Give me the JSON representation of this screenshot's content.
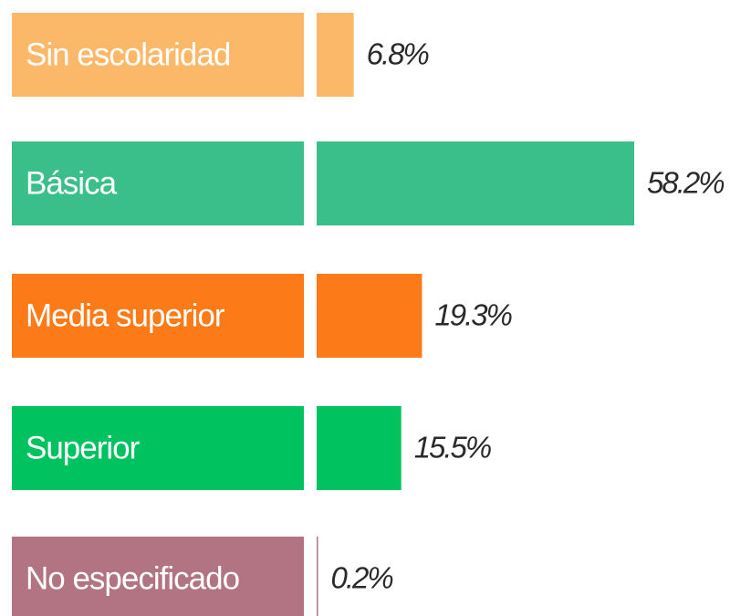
{
  "chart_data": {
    "type": "bar",
    "orientation": "horizontal",
    "categories": [
      "Sin escolaridad",
      "Básica",
      "Media superior",
      "Superior",
      "No especificado"
    ],
    "values": [
      6.8,
      58.2,
      19.3,
      15.5,
      0.2
    ],
    "value_labels": [
      "6.8%",
      "58.2%",
      "19.3%",
      "15.5%",
      "0.2%"
    ],
    "colors": [
      "#fbb868",
      "#3bbf8a",
      "#fc7a17",
      "#00c25e",
      "#b27382"
    ]
  }
}
